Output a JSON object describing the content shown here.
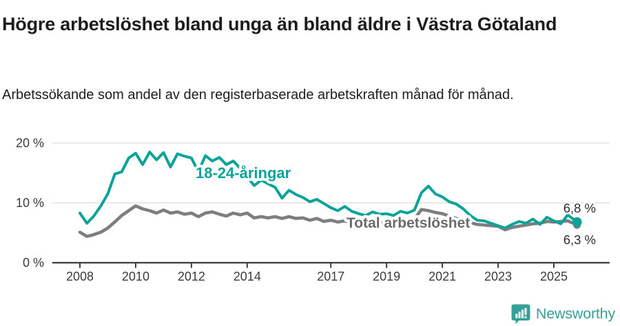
{
  "chart_data": {
    "type": "line",
    "title": "Högre arbetslöshet bland unga än bland äldre i Västra Götaland",
    "subtitle": "Arbetssökande som andel av den registerbaserade arbetskraften månad för månad.",
    "unit": "%",
    "xlim": [
      2008,
      2026
    ],
    "ylim": [
      0,
      21.5
    ],
    "grid": "horizontal-light",
    "grid_color": "#e2e2e2",
    "axis_color": "#3b3b3b",
    "tick_label_color": "#3c3c3c",
    "x_ticks": [
      2008,
      2010,
      2012,
      2014,
      2017,
      2019,
      2021,
      2023,
      2025
    ],
    "y_ticks": [
      0,
      10,
      20
    ],
    "y_tick_labels": [
      "0 %",
      "10 %",
      "20 %"
    ],
    "x": [
      2008,
      2008.25,
      2008.5,
      2008.75,
      2009,
      2009.25,
      2009.5,
      2009.75,
      2010,
      2010.25,
      2010.5,
      2010.75,
      2011,
      2011.25,
      2011.5,
      2011.75,
      2012,
      2012.25,
      2012.5,
      2012.75,
      2013,
      2013.25,
      2013.5,
      2013.75,
      2014,
      2014.25,
      2014.5,
      2014.75,
      2015,
      2015.25,
      2015.5,
      2015.75,
      2016,
      2016.25,
      2016.5,
      2016.75,
      2017,
      2017.25,
      2017.5,
      2017.75,
      2018,
      2018.25,
      2018.5,
      2018.75,
      2019,
      2019.25,
      2019.5,
      2019.75,
      2020,
      2020.25,
      2020.5,
      2020.75,
      2021,
      2021.25,
      2021.5,
      2021.75,
      2022,
      2022.25,
      2022.5,
      2022.75,
      2023,
      2023.25,
      2023.5,
      2023.75,
      2024,
      2024.25,
      2024.5,
      2024.75,
      2025,
      2025.25,
      2025.5,
      2025.83
    ],
    "series": [
      {
        "name": "18-24-åringar",
        "color": "#09a399",
        "end_label": "6,8 %",
        "values": [
          8.3,
          6.6,
          7.8,
          9.5,
          11.5,
          14.8,
          15.2,
          17.5,
          18.3,
          16.4,
          18.5,
          17.2,
          18.4,
          16.0,
          18.2,
          17.8,
          17.5,
          15.2,
          17.9,
          17.0,
          17.6,
          16.4,
          17.0,
          15.8,
          14.4,
          12.9,
          13.8,
          13.2,
          12.6,
          10.8,
          12.1,
          11.4,
          10.9,
          10.2,
          10.6,
          9.9,
          9.2,
          8.7,
          9.4,
          8.6,
          8.2,
          7.9,
          8.5,
          8.1,
          8.2,
          7.9,
          8.6,
          8.3,
          8.8,
          11.7,
          12.8,
          11.5,
          11.0,
          10.2,
          9.8,
          9.0,
          7.9,
          7.1,
          7.0,
          6.6,
          6.2,
          5.8,
          6.4,
          6.9,
          6.6,
          7.3,
          6.4,
          7.6,
          7.0,
          6.5,
          8.0,
          6.8
        ]
      },
      {
        "name": "Total arbetslöshet",
        "color": "#7e7e7e",
        "label_color": "#6b6b6b",
        "end_label": "6,3 %",
        "values": [
          5.1,
          4.4,
          4.7,
          5.1,
          5.8,
          6.8,
          7.9,
          8.7,
          9.5,
          9.0,
          8.7,
          8.3,
          8.8,
          8.3,
          8.5,
          8.1,
          8.3,
          7.7,
          8.3,
          8.5,
          8.1,
          7.8,
          8.3,
          8.0,
          8.3,
          7.5,
          7.7,
          7.5,
          7.7,
          7.4,
          7.7,
          7.4,
          7.5,
          7.1,
          7.4,
          6.9,
          7.1,
          6.8,
          7.0,
          6.7,
          6.6,
          6.5,
          6.8,
          6.7,
          6.9,
          6.8,
          7.1,
          7.0,
          7.3,
          8.9,
          8.7,
          8.4,
          8.2,
          7.8,
          7.4,
          7.0,
          6.7,
          6.4,
          6.3,
          6.2,
          6.1,
          5.5,
          5.9,
          6.1,
          6.3,
          6.5,
          6.6,
          6.9,
          6.8,
          6.9,
          7.0,
          6.3
        ]
      }
    ],
    "end_label_color": "#2e2e2e"
  },
  "footer": {
    "brand": "Newsworthy",
    "brand_color": "#35a095"
  }
}
